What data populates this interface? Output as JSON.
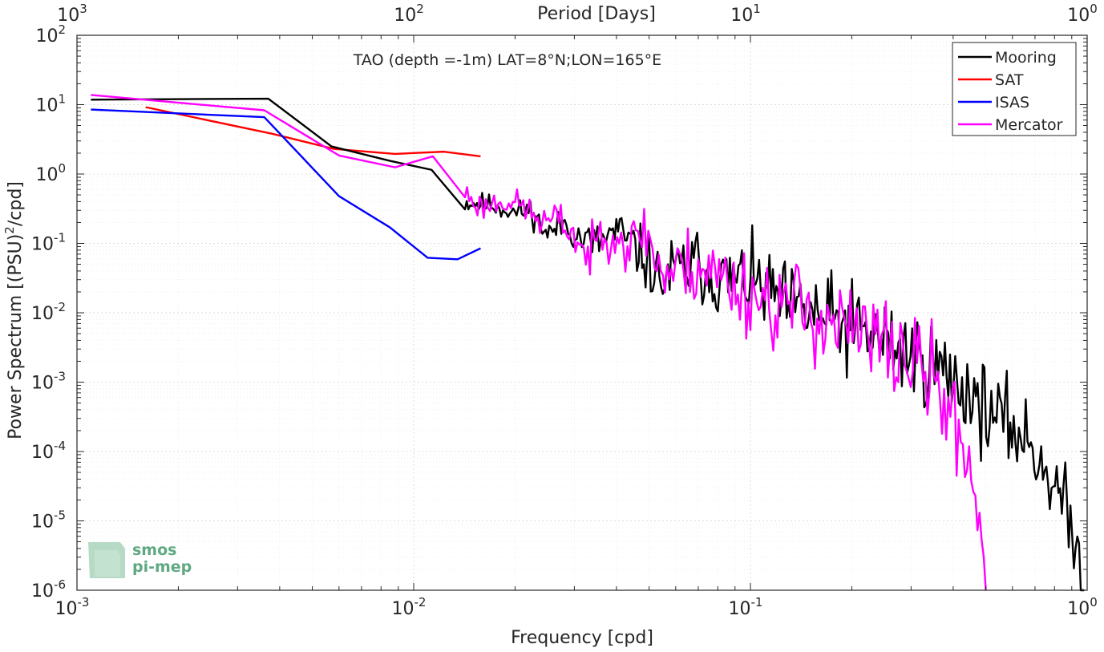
{
  "chart_data": {
    "type": "line",
    "title": "TAO (depth =-1m) LAT=8°N;LON=165°E",
    "xlabel": "Frequency [cpd]",
    "ylabel_main": "Power Spectrum [(PSU)",
    "ylabel_sup": "2",
    "ylabel_tail": "/cpd]",
    "top_axis_label": "Period [Days]",
    "x_scale": "log",
    "y_scale": "log",
    "xlim": [
      0.001,
      1
    ],
    "ylim": [
      1e-06,
      100
    ],
    "grid": true,
    "minor_grid": true,
    "legend_position": "top-right",
    "x_ticks": [
      {
        "value": 0.001,
        "base": "10",
        "exp": "-3"
      },
      {
        "value": 0.01,
        "base": "10",
        "exp": "-2"
      },
      {
        "value": 0.1,
        "base": "10",
        "exp": "-1"
      },
      {
        "value": 1,
        "base": "10",
        "exp": "0"
      }
    ],
    "top_ticks": [
      {
        "value": 0.001,
        "base": "10",
        "exp": "3"
      },
      {
        "value": 0.01,
        "base": "10",
        "exp": "2"
      },
      {
        "value": 0.1,
        "base": "10",
        "exp": "1"
      },
      {
        "value": 1,
        "base": "10",
        "exp": "0"
      }
    ],
    "y_ticks": [
      {
        "value": 100,
        "base": "10",
        "exp": "2"
      },
      {
        "value": 10,
        "base": "10",
        "exp": "1"
      },
      {
        "value": 1,
        "base": "10",
        "exp": "0"
      },
      {
        "value": 0.1,
        "base": "10",
        "exp": "-1"
      },
      {
        "value": 0.01,
        "base": "10",
        "exp": "-2"
      },
      {
        "value": 0.001,
        "base": "10",
        "exp": "-3"
      },
      {
        "value": 0.0001,
        "base": "10",
        "exp": "-4"
      },
      {
        "value": 1e-05,
        "base": "10",
        "exp": "-5"
      },
      {
        "value": 1e-06,
        "base": "10",
        "exp": "-6"
      }
    ],
    "series": [
      {
        "name": "Mooring",
        "color": "#000000",
        "anchors": [
          [
            0.0011,
            11.8
          ],
          [
            0.0037,
            12.2
          ],
          [
            0.0057,
            2.5
          ],
          [
            0.0085,
            1.55
          ],
          [
            0.0113,
            1.15
          ],
          [
            0.0142,
            0.39
          ],
          [
            0.017,
            0.36
          ],
          [
            0.0198,
            0.28
          ],
          [
            0.0222,
            0.3
          ],
          [
            0.025,
            0.135
          ],
          [
            0.028,
            0.2
          ],
          [
            0.031,
            0.12
          ],
          [
            0.035,
            0.1
          ],
          [
            0.04,
            0.15
          ],
          [
            0.045,
            0.09
          ],
          [
            0.05,
            0.05
          ],
          [
            0.054,
            0.028
          ],
          [
            0.06,
            0.04
          ],
          [
            0.07,
            0.05
          ],
          [
            0.08,
            0.03
          ],
          [
            0.1,
            0.03
          ],
          [
            0.13,
            0.012
          ],
          [
            0.16,
            0.009
          ],
          [
            0.2,
            0.006
          ],
          [
            0.25,
            0.004
          ],
          [
            0.3,
            0.0025
          ],
          [
            0.35,
            0.0018
          ],
          [
            0.4,
            0.0011
          ],
          [
            0.45,
            0.0007
          ],
          [
            0.5,
            0.0004
          ],
          [
            0.55,
            0.00028
          ],
          [
            0.6,
            0.00022
          ],
          [
            0.65,
            0.00016
          ],
          [
            0.7,
            0.0001
          ],
          [
            0.75,
            6e-05
          ],
          [
            0.8,
            3.5e-05
          ],
          [
            0.85,
            1.8e-05
          ],
          [
            0.9,
            7e-06
          ],
          [
            0.93,
            3.5e-06
          ],
          [
            0.96,
            1.5e-06
          ],
          [
            0.98,
            7e-07
          ]
        ],
        "jitter": [
          [
            0.02,
            0.08
          ],
          [
            0.06,
            0.26
          ],
          [
            0.1,
            0.28
          ],
          [
            0.2,
            0.34
          ],
          [
            0.4,
            0.32
          ],
          [
            1.0,
            0.28
          ]
        ],
        "n_points": 360,
        "seed": 11
      },
      {
        "name": "SAT",
        "color": "#ff0000",
        "anchors": [
          [
            0.0016,
            9.2
          ],
          [
            0.0038,
            3.8
          ],
          [
            0.0058,
            2.3
          ],
          [
            0.0088,
            1.95
          ],
          [
            0.0123,
            2.1
          ],
          [
            0.0158,
            1.8
          ]
        ]
      },
      {
        "name": "ISAS",
        "color": "#0000ff",
        "anchors": [
          [
            0.0011,
            8.5
          ],
          [
            0.0036,
            6.6
          ],
          [
            0.006,
            0.48
          ],
          [
            0.0085,
            0.17
          ],
          [
            0.011,
            0.062
          ],
          [
            0.0135,
            0.059
          ],
          [
            0.0158,
            0.085
          ]
        ]
      },
      {
        "name": "Mercator",
        "color": "#ff00ff",
        "anchors": [
          [
            0.0011,
            13.8
          ],
          [
            0.0036,
            8.3
          ],
          [
            0.006,
            1.85
          ],
          [
            0.0088,
            1.25
          ],
          [
            0.0114,
            1.8
          ],
          [
            0.013,
            0.8
          ],
          [
            0.0158,
            0.33
          ],
          [
            0.0185,
            0.42
          ],
          [
            0.021,
            0.35
          ],
          [
            0.024,
            0.2
          ],
          [
            0.027,
            0.22
          ],
          [
            0.03,
            0.13
          ],
          [
            0.033,
            0.06
          ],
          [
            0.036,
            0.15
          ],
          [
            0.04,
            0.15
          ],
          [
            0.044,
            0.08
          ],
          [
            0.048,
            0.18
          ],
          [
            0.055,
            0.035
          ],
          [
            0.07,
            0.05
          ],
          [
            0.09,
            0.025
          ],
          [
            0.12,
            0.013
          ],
          [
            0.15,
            0.011
          ],
          [
            0.2,
            0.005
          ],
          [
            0.25,
            0.0035
          ],
          [
            0.3,
            0.002
          ],
          [
            0.35,
            0.0011
          ],
          [
            0.38,
            0.00045
          ],
          [
            0.4,
            0.00028
          ],
          [
            0.42,
            0.00015
          ],
          [
            0.45,
            6e-05
          ],
          [
            0.47,
            2e-05
          ],
          [
            0.49,
            4e-06
          ],
          [
            0.5,
            1e-06
          ]
        ],
        "jitter": [
          [
            0.02,
            0.1
          ],
          [
            0.06,
            0.28
          ],
          [
            0.15,
            0.36
          ],
          [
            0.3,
            0.36
          ],
          [
            0.45,
            0.3
          ],
          [
            0.5,
            0.25
          ]
        ],
        "n_points": 250,
        "seed": 23
      }
    ]
  },
  "logo": {
    "line1": "smos",
    "line2": "pi-mep"
  }
}
